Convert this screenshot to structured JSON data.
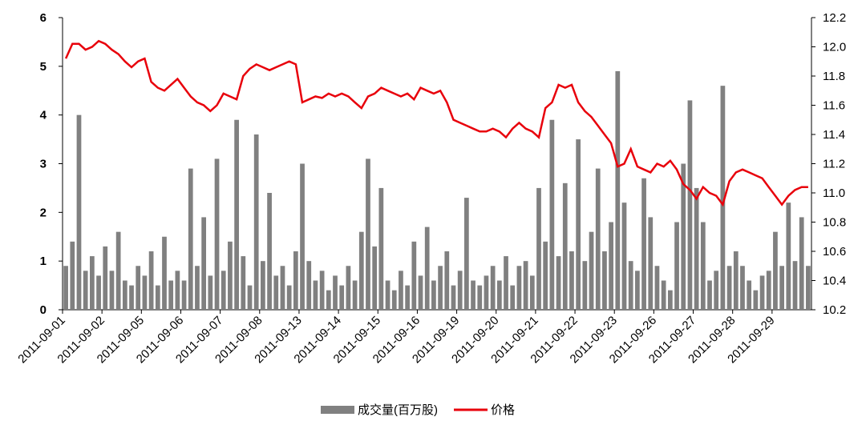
{
  "chart_data": {
    "type": "bar-line",
    "categories": [
      "2011-09-01",
      null,
      null,
      null,
      null,
      null,
      "2011-09-02",
      null,
      null,
      null,
      null,
      null,
      "2011-09-05",
      null,
      null,
      null,
      null,
      null,
      "2011-09-06",
      null,
      null,
      null,
      null,
      null,
      "2011-09-07",
      null,
      null,
      null,
      null,
      null,
      "2011-09-08",
      null,
      null,
      null,
      null,
      null,
      "2011-09-13",
      null,
      null,
      null,
      null,
      null,
      "2011-09-14",
      null,
      null,
      null,
      null,
      null,
      "2011-09-15",
      null,
      null,
      null,
      null,
      null,
      "2011-09-16",
      null,
      null,
      null,
      null,
      null,
      "2011-09-19",
      null,
      null,
      null,
      null,
      null,
      "2011-09-20",
      null,
      null,
      null,
      null,
      null,
      "2011-09-21",
      null,
      null,
      null,
      null,
      null,
      "2011-09-22",
      null,
      null,
      null,
      null,
      null,
      "2011-09-23",
      null,
      null,
      null,
      null,
      null,
      "2011-09-26",
      null,
      null,
      null,
      null,
      null,
      "2011-09-27",
      null,
      null,
      null,
      null,
      null,
      "2011-09-28",
      null,
      null,
      null,
      null,
      null,
      "2011-09-29",
      null,
      null,
      null,
      null,
      null
    ],
    "series": [
      {
        "name": "成交量(百万股)",
        "type": "bar",
        "color": "#808080",
        "values": [
          0.9,
          1.4,
          4.0,
          0.8,
          1.1,
          0.7,
          1.3,
          0.8,
          1.6,
          0.6,
          0.5,
          0.9,
          0.7,
          1.2,
          0.5,
          1.5,
          0.6,
          0.8,
          0.6,
          2.9,
          0.9,
          1.9,
          0.7,
          3.1,
          0.8,
          1.4,
          3.9,
          1.1,
          0.5,
          3.6,
          1.0,
          2.4,
          0.7,
          0.9,
          0.5,
          1.2,
          3.0,
          1.0,
          0.6,
          0.8,
          0.4,
          0.7,
          0.5,
          0.9,
          0.6,
          1.6,
          3.1,
          1.3,
          2.5,
          0.6,
          0.4,
          0.8,
          0.5,
          1.4,
          0.7,
          1.7,
          0.6,
          0.9,
          1.2,
          0.5,
          0.8,
          2.3,
          0.6,
          0.5,
          0.7,
          0.9,
          0.6,
          1.1,
          0.5,
          0.9,
          1.0,
          0.7,
          2.5,
          1.4,
          3.9,
          1.1,
          2.6,
          1.2,
          3.5,
          1.0,
          1.6,
          2.9,
          1.2,
          1.8,
          4.9,
          2.2,
          1.0,
          0.8,
          2.7,
          1.9,
          0.9,
          0.6,
          0.4,
          1.8,
          3.0,
          4.3,
          2.5,
          1.8,
          0.6,
          0.8,
          4.6,
          0.9,
          1.2,
          0.9,
          0.6,
          0.4,
          0.7,
          0.8,
          1.6,
          0.9,
          2.2,
          1.0,
          1.9,
          0.9
        ]
      },
      {
        "name": "价格",
        "type": "line",
        "axis": "y2",
        "color": "#e8000b",
        "values": [
          11.92,
          12.02,
          12.02,
          11.98,
          12.0,
          12.04,
          12.02,
          11.98,
          11.95,
          11.9,
          11.86,
          11.9,
          11.92,
          11.76,
          11.72,
          11.7,
          11.74,
          11.78,
          11.72,
          11.66,
          11.62,
          11.6,
          11.56,
          11.6,
          11.68,
          11.66,
          11.64,
          11.8,
          11.85,
          11.88,
          11.86,
          11.84,
          11.86,
          11.88,
          11.9,
          11.88,
          11.62,
          11.64,
          11.66,
          11.65,
          11.68,
          11.66,
          11.68,
          11.66,
          11.62,
          11.58,
          11.66,
          11.68,
          11.72,
          11.7,
          11.68,
          11.66,
          11.68,
          11.64,
          11.72,
          11.7,
          11.68,
          11.7,
          11.62,
          11.5,
          11.48,
          11.46,
          11.44,
          11.42,
          11.42,
          11.44,
          11.42,
          11.38,
          11.44,
          11.48,
          11.44,
          11.42,
          11.38,
          11.58,
          11.62,
          11.74,
          11.72,
          11.74,
          11.62,
          11.56,
          11.52,
          11.46,
          11.4,
          11.34,
          11.18,
          11.2,
          11.3,
          11.18,
          11.16,
          11.14,
          11.2,
          11.18,
          11.22,
          11.16,
          11.06,
          11.02,
          10.96,
          11.04,
          11.0,
          10.98,
          10.92,
          11.08,
          11.14,
          11.16,
          11.14,
          11.12,
          11.1,
          11.04,
          10.98,
          10.92,
          10.98,
          11.02,
          11.04,
          11.04
        ]
      }
    ],
    "ylim": [
      0,
      6
    ],
    "yticks": [
      0,
      1,
      2,
      3,
      4,
      5,
      6
    ],
    "y2lim": [
      10.2,
      12.2
    ],
    "y2ticks": [
      10.2,
      10.4,
      10.6,
      10.8,
      {
        "value": 11,
        "label": "11.0"
      },
      11.2,
      11.4,
      11.6,
      11.8,
      {
        "value": 12,
        "label": "12.0"
      },
      12.2
    ],
    "legend": "bottom"
  }
}
